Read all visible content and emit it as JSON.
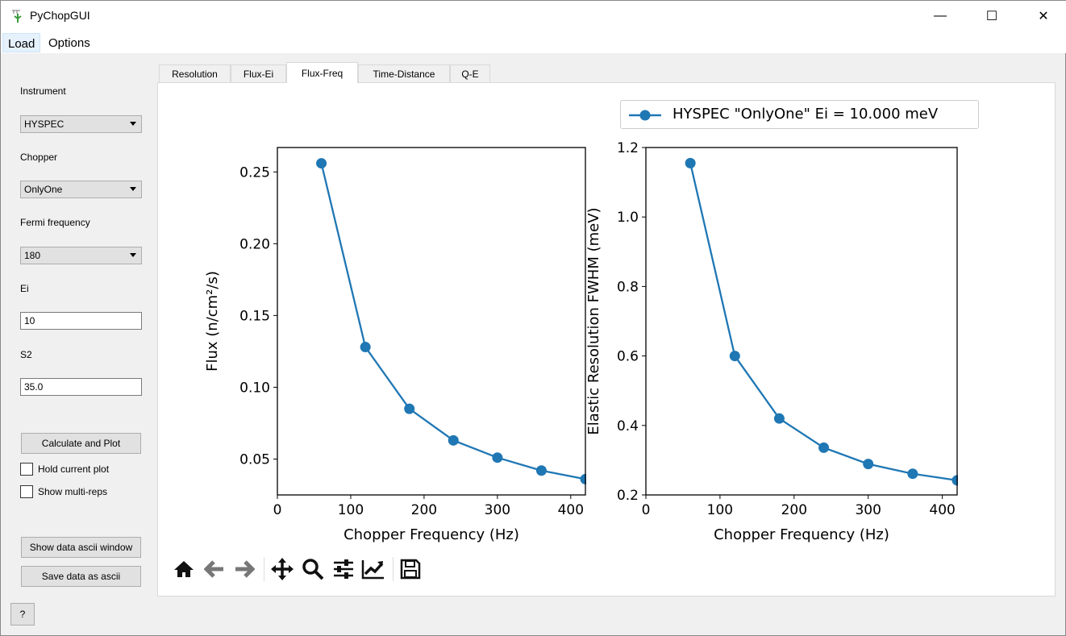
{
  "window": {
    "title": "PyChopGUI",
    "minimize": "—",
    "maximize": "☐",
    "close": "✕"
  },
  "menu": [
    "Load",
    "Options"
  ],
  "sidebar": {
    "instrument_label": "Instrument",
    "instrument_value": "HYSPEC",
    "chopper_label": "Chopper",
    "chopper_value": "OnlyOne",
    "fermi_label": "Fermi frequency",
    "fermi_value": "180",
    "ei_label": "Ei",
    "ei_value": "10",
    "s2_label": "S2",
    "s2_value": "35.0",
    "calc_button": "Calculate and Plot",
    "hold_label": "Hold current plot",
    "hold_checked": false,
    "multirep_label": "Show multi-reps",
    "multirep_checked": false,
    "ascii_window_button": "Show data ascii window",
    "save_ascii_button": "Save data as ascii",
    "help_button": "?"
  },
  "tabs": [
    "Resolution",
    "Flux-Ei",
    "Flux-Freq",
    "Time-Distance",
    "Q-E"
  ],
  "active_tab": "Flux-Freq",
  "toolbar": [
    "home-icon",
    "back-icon",
    "forward-icon",
    "pan-icon",
    "zoom-icon",
    "configure-subplots-icon",
    "edit-axis-icon",
    "save-icon"
  ],
  "legend": "HYSPEC \"OnlyOne\" Ei = 10.000 meV",
  "series_color": "#1f77b4",
  "chart_data": [
    {
      "type": "line",
      "xlabel": "Chopper Frequency (Hz)",
      "ylabel": "Flux (n/cm²/s)",
      "xlim": [
        0,
        420
      ],
      "ylim": [
        0.025,
        0.267
      ],
      "xticks": [
        0,
        100,
        200,
        300,
        400
      ],
      "yticks": [
        0.05,
        0.1,
        0.15,
        0.2,
        0.25
      ],
      "ytick_labels": [
        "0.05",
        "0.10",
        "0.15",
        "0.20",
        "0.25"
      ],
      "x": [
        60,
        120,
        180,
        240,
        300,
        360,
        420
      ],
      "y": [
        0.256,
        0.128,
        0.085,
        0.063,
        0.051,
        0.042,
        0.036
      ]
    },
    {
      "type": "line",
      "xlabel": "Chopper Frequency (Hz)",
      "ylabel": "Elastic Resolution FWHM (meV)",
      "xlim": [
        0,
        420
      ],
      "ylim": [
        0.2,
        1.2
      ],
      "xticks": [
        0,
        100,
        200,
        300,
        400
      ],
      "yticks": [
        0.2,
        0.4,
        0.6,
        0.8,
        1.0,
        1.2
      ],
      "ytick_labels": [
        "0.2",
        "0.4",
        "0.6",
        "0.8",
        "1.0",
        "1.2"
      ],
      "x": [
        60,
        120,
        180,
        240,
        300,
        360,
        420
      ],
      "y": [
        1.155,
        0.6,
        0.42,
        0.336,
        0.289,
        0.261,
        0.242
      ]
    }
  ]
}
